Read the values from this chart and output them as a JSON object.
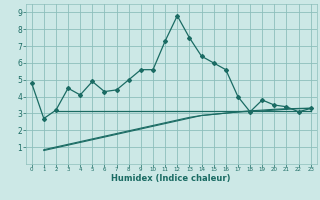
{
  "title": "",
  "xlabel": "Humidex (Indice chaleur)",
  "bg_color": "#cce8e6",
  "grid_color": "#8dbfbb",
  "line_color": "#1a6b63",
  "x": [
    0,
    1,
    2,
    3,
    4,
    5,
    6,
    7,
    8,
    9,
    10,
    11,
    12,
    13,
    14,
    15,
    16,
    17,
    18,
    19,
    20,
    21,
    22,
    23
  ],
  "y_main": [
    4.8,
    2.7,
    3.2,
    4.5,
    4.1,
    4.9,
    4.3,
    4.4,
    5.0,
    5.6,
    5.6,
    7.3,
    8.8,
    7.5,
    6.4,
    6.0,
    5.6,
    4.0,
    3.1,
    3.8,
    3.5,
    3.4,
    3.1,
    3.3
  ],
  "y_flat_x": [
    2,
    3,
    4,
    5,
    6,
    7,
    8,
    9,
    10,
    11,
    12,
    13,
    14,
    15,
    16,
    17,
    18,
    19,
    20,
    21,
    22,
    23
  ],
  "y_flat": [
    3.15,
    3.15,
    3.15,
    3.15,
    3.15,
    3.15,
    3.15,
    3.15,
    3.15,
    3.15,
    3.15,
    3.15,
    3.15,
    3.15,
    3.15,
    3.15,
    3.15,
    3.15,
    3.15,
    3.15,
    3.15,
    3.15
  ],
  "diag_x": [
    1,
    2,
    3,
    4,
    5,
    6,
    7,
    8,
    9,
    10,
    11,
    12,
    13,
    14,
    15,
    16,
    17,
    18,
    19,
    20,
    21,
    22,
    23
  ],
  "y_diag1": [
    0.8,
    0.96,
    1.12,
    1.28,
    1.44,
    1.6,
    1.76,
    1.92,
    2.08,
    2.24,
    2.4,
    2.56,
    2.72,
    2.88,
    2.95,
    3.02,
    3.09,
    3.12,
    3.15,
    3.2,
    3.25,
    3.28,
    3.3
  ],
  "y_diag2": [
    0.85,
    1.01,
    1.17,
    1.33,
    1.49,
    1.65,
    1.81,
    1.97,
    2.13,
    2.29,
    2.45,
    2.61,
    2.77,
    2.88,
    2.95,
    3.02,
    3.09,
    3.16,
    3.2,
    3.25,
    3.28,
    3.3,
    3.32
  ],
  "ylim": [
    0,
    9.5
  ],
  "xlim": [
    -0.5,
    23.5
  ],
  "yticks": [
    1,
    2,
    3,
    4,
    5,
    6,
    7,
    8,
    9
  ],
  "xticks": [
    0,
    1,
    2,
    3,
    4,
    5,
    6,
    7,
    8,
    9,
    10,
    11,
    12,
    13,
    14,
    15,
    16,
    17,
    18,
    19,
    20,
    21,
    22,
    23
  ]
}
